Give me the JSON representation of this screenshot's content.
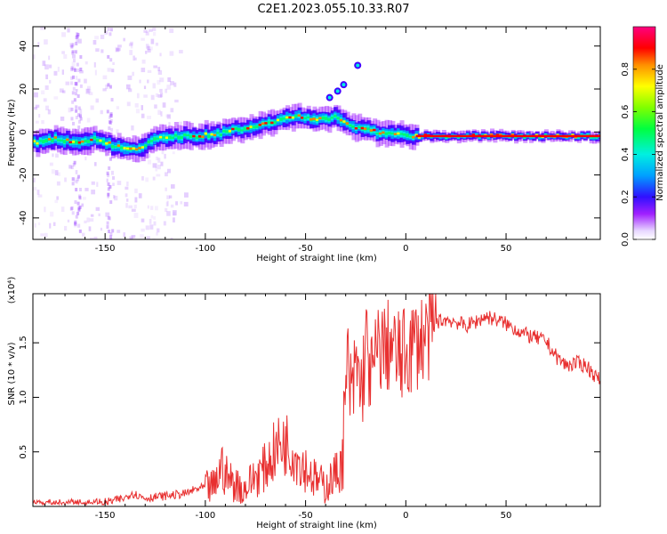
{
  "title": "C2E1.2023.055.10.33.R07",
  "chart_data": [
    {
      "type": "heatmap",
      "title": "",
      "xlabel": "Height of straight line (km)",
      "ylabel": "Frequency (Hz)",
      "xlim": [
        -186,
        97
      ],
      "ylim": [
        -50,
        49
      ],
      "x_ticks": [
        -150,
        -100,
        -50,
        0,
        50
      ],
      "y_ticks": [
        -40,
        -20,
        0,
        20,
        40
      ],
      "colorbar": {
        "label": "Normalized spectral amplitude",
        "range": [
          0,
          1
        ],
        "ticks": [
          0.0,
          0.2,
          0.4,
          0.6,
          0.8
        ],
        "tick_labels": [
          "0.0",
          "0.2",
          "0.4",
          "0.6",
          "0.8"
        ],
        "colors": [
          "#f8f8ff",
          "#a020ff",
          "#4000ff",
          "#00a0ff",
          "#00f0e0",
          "#00ff60",
          "#80ff00",
          "#ffff00",
          "#ff8000",
          "#ff0000",
          "#ff0080"
        ]
      },
      "doppler_trace": {
        "x": [
          -185,
          -175,
          -165,
          -155,
          -145,
          -135,
          -125,
          -115,
          -105,
          -95,
          -85,
          -75,
          -65,
          -55,
          -45,
          -40,
          -35,
          -25,
          -15,
          -5,
          5,
          20,
          50,
          96
        ],
        "y": [
          -5,
          -3,
          -5,
          -3,
          -7,
          -8,
          -3,
          -2,
          -2,
          -1,
          1,
          3,
          5,
          7,
          6,
          6,
          7,
          2,
          0,
          -1,
          -2,
          -2,
          -2,
          -2
        ]
      },
      "outlier_blobs": {
        "x": [
          -38,
          -34,
          -31,
          -24
        ],
        "y": [
          16,
          19,
          22,
          31
        ]
      }
    },
    {
      "type": "line",
      "title": "",
      "xlabel": "Height of straight line (km)",
      "ylabel": "SNR (10 * v/v)",
      "scale_label": "(x10⁴)",
      "xlim": [
        -186,
        97
      ],
      "ylim": [
        0,
        1.95
      ],
      "x_ticks": [
        -150,
        -100,
        -50,
        0,
        50
      ],
      "y_ticks": [
        0.5,
        1.0,
        1.5
      ],
      "y_tick_labels": [
        "0.5",
        "1.0",
        "1.5"
      ],
      "line_color": "#e83030",
      "series": [
        {
          "x": [
            -186,
            -170,
            -150,
            -140,
            -137,
            -130,
            -120,
            -110,
            -105,
            -100,
            -95,
            -92,
            -90,
            -85,
            -80,
            -75,
            -70,
            -65,
            -62,
            -60,
            -57,
            -55,
            -50,
            -45,
            -40,
            -35,
            -32,
            -30,
            -29,
            -27,
            -25,
            -22,
            -20,
            -17,
            -15,
            -12,
            -10,
            -8,
            -5,
            -2,
            0,
            5,
            10,
            15,
            20,
            25,
            30,
            35,
            40,
            45,
            50,
            55,
            60,
            65,
            70,
            75,
            80,
            85,
            90,
            97
          ],
          "y": [
            0.04,
            0.03,
            0.04,
            0.08,
            0.13,
            0.08,
            0.1,
            0.12,
            0.16,
            0.18,
            0.2,
            0.42,
            0.3,
            0.22,
            0.18,
            0.3,
            0.38,
            0.55,
            0.6,
            0.62,
            0.55,
            0.5,
            0.38,
            0.26,
            0.2,
            0.32,
            0.4,
            1.0,
            1.4,
            0.95,
            1.35,
            1.1,
            1.55,
            1.2,
            1.4,
            1.55,
            1.45,
            1.55,
            1.42,
            1.4,
            1.45,
            1.55,
            1.6,
            1.7,
            1.72,
            1.7,
            1.66,
            1.7,
            1.75,
            1.72,
            1.68,
            1.63,
            1.58,
            1.55,
            1.52,
            1.38,
            1.3,
            1.32,
            1.3,
            1.15
          ]
        }
      ]
    }
  ]
}
